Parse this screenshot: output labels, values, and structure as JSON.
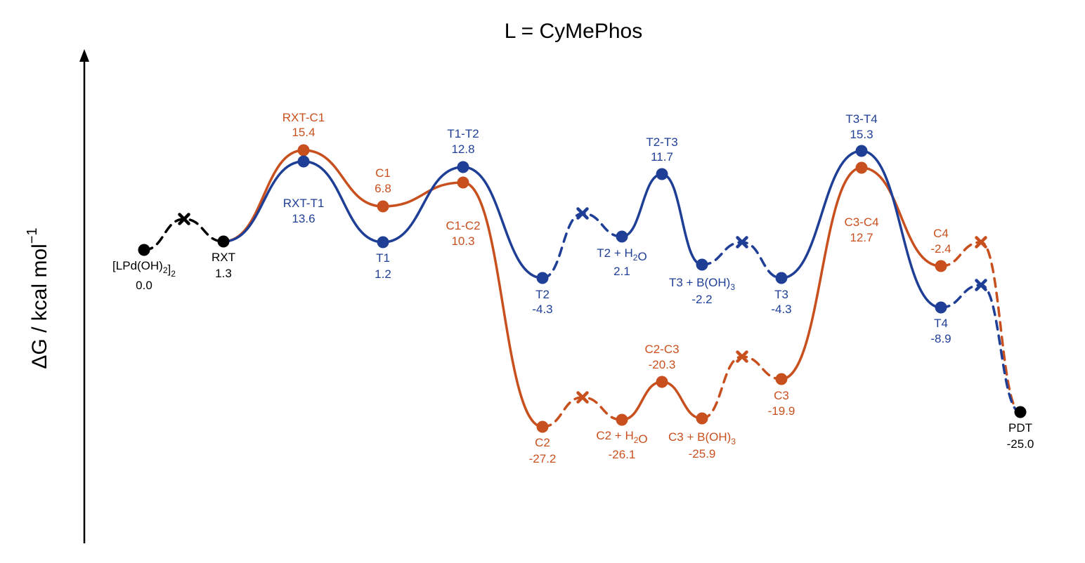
{
  "title": "L = CyMePhos",
  "y_axis_label": "ΔG / kcal mol",
  "y_axis_superscript": "−1",
  "colors": {
    "black": "#000000",
    "orange": "#C8501E",
    "blue": "#1F3F96"
  },
  "chart_data": {
    "type": "energy-profile",
    "paths": [
      {
        "color": "black",
        "segments": [
          {
            "from": "LPdOH2",
            "to": "RXT",
            "style": "dashed",
            "via": "x0"
          }
        ]
      },
      {
        "color": "orange",
        "segments": [
          {
            "from": "RXT",
            "to": "RXT-C1",
            "style": "solid"
          },
          {
            "from": "RXT-C1",
            "to": "C1",
            "style": "solid"
          },
          {
            "from": "C1",
            "to": "C1-C2",
            "style": "solid"
          },
          {
            "from": "C1-C2",
            "to": "C2",
            "style": "solid"
          },
          {
            "from": "C2",
            "to": "C2+H2O",
            "style": "dashed",
            "via": "xo1"
          },
          {
            "from": "C2+H2O",
            "to": "C2-C3",
            "style": "solid"
          },
          {
            "from": "C2-C3",
            "to": "C3+BOH3",
            "style": "solid"
          },
          {
            "from": "C3+BOH3",
            "to": "C3",
            "style": "dashed",
            "via": "xo2"
          },
          {
            "from": "C3",
            "to": "C3-C4",
            "style": "solid"
          },
          {
            "from": "C3-C4",
            "to": "C4",
            "style": "solid"
          },
          {
            "from": "C4",
            "to": "PDT",
            "style": "dashed",
            "via": "xo3"
          }
        ]
      },
      {
        "color": "blue",
        "segments": [
          {
            "from": "RXT",
            "to": "RXT-T1",
            "style": "solid"
          },
          {
            "from": "RXT-T1",
            "to": "T1",
            "style": "solid"
          },
          {
            "from": "T1",
            "to": "T1-T2",
            "style": "solid"
          },
          {
            "from": "T1-T2",
            "to": "T2",
            "style": "solid"
          },
          {
            "from": "T2",
            "to": "T2+H2O",
            "style": "dashed",
            "via": "xb1"
          },
          {
            "from": "T2+H2O",
            "to": "T2-T3",
            "style": "solid"
          },
          {
            "from": "T2-T3",
            "to": "T3+BOH3",
            "style": "solid"
          },
          {
            "from": "T3+BOH3",
            "to": "T3",
            "style": "dashed",
            "via": "xb2"
          },
          {
            "from": "T3",
            "to": "T3-T4",
            "style": "solid"
          },
          {
            "from": "T3-T4",
            "to": "T4",
            "style": "solid"
          },
          {
            "from": "T4",
            "to": "PDT",
            "style": "dashed",
            "via": "xb3"
          }
        ]
      }
    ],
    "nodes": [
      {
        "id": "LPdOH2",
        "color": "black",
        "parts": [
          [
            "[LPd(OH)",
            ""
          ],
          [
            "2",
            "sub"
          ],
          [
            "]",
            ""
          ],
          [
            "2",
            "sub"
          ]
        ],
        "value": "0.0"
      },
      {
        "id": "RXT",
        "color": "black",
        "label": "RXT",
        "value": "1.3"
      },
      {
        "id": "RXT-C1",
        "color": "orange",
        "label": "RXT-C1",
        "value": "15.4"
      },
      {
        "id": "RXT-T1",
        "color": "blue",
        "label": "RXT-T1",
        "value": "13.6"
      },
      {
        "id": "C1",
        "color": "orange",
        "label": "C1",
        "value": "6.8"
      },
      {
        "id": "T1",
        "color": "blue",
        "label": "T1",
        "value": "1.2"
      },
      {
        "id": "T1-T2",
        "color": "blue",
        "label": "T1-T2",
        "value": "12.8"
      },
      {
        "id": "C1-C2",
        "color": "orange",
        "label": "C1-C2",
        "value": "10.3"
      },
      {
        "id": "T2",
        "color": "blue",
        "label": "T2",
        "value": "-4.3"
      },
      {
        "id": "C2",
        "color": "orange",
        "label": "C2",
        "value": "-27.2"
      },
      {
        "id": "T2+H2O",
        "color": "blue",
        "parts": [
          [
            "T2 + H",
            ""
          ],
          [
            "2",
            "sub"
          ],
          [
            "O",
            ""
          ]
        ],
        "value": "2.1"
      },
      {
        "id": "C2+H2O",
        "color": "orange",
        "parts": [
          [
            "C2 + H",
            ""
          ],
          [
            "2",
            "sub"
          ],
          [
            "O",
            ""
          ]
        ],
        "value": "-26.1"
      },
      {
        "id": "T2-T3",
        "color": "blue",
        "label": "T2-T3",
        "value": "11.7"
      },
      {
        "id": "C2-C3",
        "color": "orange",
        "label": "C2-C3",
        "value": "-20.3"
      },
      {
        "id": "T3+BOH3",
        "color": "blue",
        "parts": [
          [
            "T3 + B(OH)",
            ""
          ],
          [
            "3",
            "sub"
          ]
        ],
        "value": "-2.2"
      },
      {
        "id": "C3+BOH3",
        "color": "orange",
        "parts": [
          [
            "C3 + B(OH)",
            ""
          ],
          [
            "3",
            "sub"
          ]
        ],
        "value": "-25.9"
      },
      {
        "id": "T3",
        "color": "blue",
        "label": "T3",
        "value": "-4.3"
      },
      {
        "id": "C3",
        "color": "orange",
        "label": "C3",
        "value": "-19.9"
      },
      {
        "id": "T3-T4",
        "color": "blue",
        "label": "T3-T4",
        "value": "15.3"
      },
      {
        "id": "C3-C4",
        "color": "orange",
        "label": "C3-C4",
        "value": "12.7"
      },
      {
        "id": "C4",
        "color": "orange",
        "label": "C4",
        "value": "-2.4"
      },
      {
        "id": "T4",
        "color": "blue",
        "label": "T4",
        "value": "-8.9"
      },
      {
        "id": "PDT",
        "color": "black",
        "label": "PDT",
        "value": "-25.0"
      }
    ],
    "crosses": [
      {
        "id": "x0",
        "color": "black"
      },
      {
        "id": "xo1",
        "color": "orange"
      },
      {
        "id": "xo2",
        "color": "orange"
      },
      {
        "id": "xo3",
        "color": "orange"
      },
      {
        "id": "xb1",
        "color": "blue"
      },
      {
        "id": "xb2",
        "color": "blue"
      },
      {
        "id": "xb3",
        "color": "blue"
      }
    ]
  }
}
